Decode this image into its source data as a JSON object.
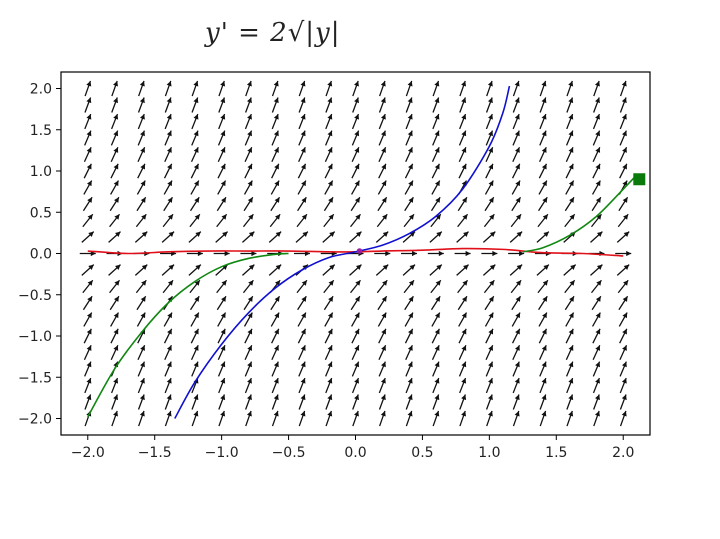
{
  "annotation": {
    "handwritten_title": "y' = 2√|y|"
  },
  "colors": {
    "arrows": "#111111",
    "curve_red": "#e0101a",
    "curve_blue": "#1010d0",
    "curve_green": "#118811",
    "marker_green": "#0a7a0a",
    "frame": "#000000"
  },
  "chart_data": {
    "type": "line",
    "title": "",
    "xlabel": "",
    "ylabel": "",
    "xlim": [
      -2.2,
      2.2
    ],
    "ylim": [
      -2.2,
      2.2
    ],
    "x_ticks": [
      -2.0,
      -1.5,
      -1.0,
      -0.5,
      0.0,
      0.5,
      1.0,
      1.5,
      2.0
    ],
    "y_ticks": [
      2.0,
      1.5,
      1.0,
      0.5,
      0.0,
      -0.5,
      -1.0,
      -1.5,
      -2.0
    ],
    "x_tick_labels": [
      "−2.0",
      "−1.5",
      "−1.0",
      "−0.5",
      "0.0",
      "0.5",
      "1.0",
      "1.5",
      "2.0"
    ],
    "y_tick_labels": [
      "2.0",
      "1.5",
      "1.0",
      "0.5",
      "0.0",
      "−0.5",
      "−1.0",
      "−1.5",
      "−2.0"
    ],
    "grid": false,
    "direction_field": {
      "equation": "y' = 2*sqrt(|y|)",
      "x_values": [
        -2.0,
        -1.8,
        -1.6,
        -1.4,
        -1.2,
        -1.0,
        -0.8,
        -0.6,
        -0.4,
        -0.2,
        0.0,
        0.2,
        0.4,
        0.6,
        0.8,
        1.0,
        1.2,
        1.4,
        1.6,
        1.8,
        2.0
      ],
      "y_values": [
        -2.0,
        -1.8,
        -1.6,
        -1.4,
        -1.2,
        -1.0,
        -0.8,
        -0.6,
        -0.4,
        -0.2,
        0.0,
        0.2,
        0.4,
        0.6,
        0.8,
        1.0,
        1.2,
        1.4,
        1.6,
        1.8,
        2.0
      ]
    },
    "series": [
      {
        "color": "#e0101a",
        "x": [
          -2.0,
          -1.7,
          -1.4,
          -1.1,
          -0.8,
          -0.5,
          -0.2,
          0.0,
          0.2,
          0.5,
          0.8,
          1.1,
          1.4,
          1.7,
          2.0
        ],
        "y": [
          0.03,
          0.0,
          0.02,
          0.03,
          0.03,
          0.03,
          0.02,
          0.02,
          0.03,
          0.04,
          0.06,
          0.05,
          0.01,
          0.0,
          -0.03
        ]
      },
      {
        "color": "#1010d0",
        "x": [
          -1.35,
          -1.2,
          -1.0,
          -0.8,
          -0.6,
          -0.4,
          -0.2,
          0.0,
          0.2,
          0.4,
          0.6,
          0.8,
          1.0,
          1.1,
          1.15
        ],
        "y": [
          -2.0,
          -1.56,
          -1.1,
          -0.72,
          -0.42,
          -0.2,
          -0.05,
          0.02,
          0.1,
          0.24,
          0.45,
          0.78,
          1.3,
          1.7,
          2.03
        ]
      },
      {
        "color": "#118811",
        "x": [
          -2.0,
          -1.8,
          -1.6,
          -1.4,
          -1.2,
          -1.0,
          -0.8,
          -0.6,
          -0.5
        ],
        "y": [
          -1.98,
          -1.4,
          -0.96,
          -0.6,
          -0.34,
          -0.16,
          -0.06,
          -0.01,
          0.0
        ]
      },
      {
        "color": "#118811",
        "x": [
          1.25,
          1.4,
          1.6,
          1.8,
          2.0,
          2.1
        ],
        "y": [
          0.02,
          0.07,
          0.22,
          0.45,
          0.78,
          0.95
        ]
      }
    ],
    "points": [
      {
        "x": 0.03,
        "y": 0.03,
        "color": "#9b1fa0"
      }
    ],
    "marker": {
      "x": 2.12,
      "y": 0.9,
      "color": "#0a7a0a"
    }
  }
}
